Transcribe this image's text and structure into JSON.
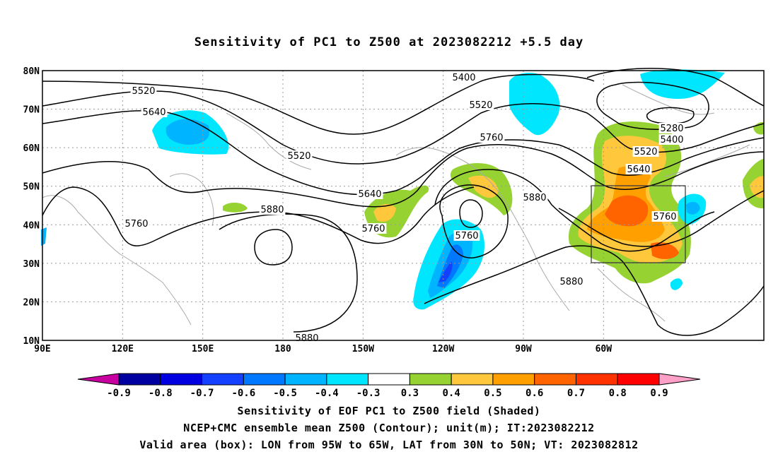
{
  "title": "Sensitivity of PC1 to Z500 at 2023082212 +5.5 day",
  "map": {
    "lon_ticks": [
      "90E",
      "120E",
      "150E",
      "180",
      "150W",
      "120W",
      "90W",
      "60W"
    ],
    "lat_ticks": [
      "80N",
      "70N",
      "60N",
      "50N",
      "40N",
      "30N",
      "20N",
      "10N"
    ]
  },
  "contour_labels": [
    "5400",
    "5520",
    "5640",
    "5520",
    "5520",
    "5760",
    "5880",
    "5640",
    "5760",
    "5760",
    "5880",
    "5760",
    "5880",
    "5880",
    "5280",
    "5400",
    "5520",
    "5640",
    "5760"
  ],
  "colorbar": {
    "labels": [
      "-0.9",
      "-0.8",
      "-0.7",
      "-0.6",
      "-0.5",
      "-0.4",
      "-0.3",
      "0.3",
      "0.4",
      "0.5",
      "0.6",
      "0.7",
      "0.8",
      "0.9"
    ],
    "colors": [
      "#0000a0",
      "#0000e0",
      "#1440ff",
      "#0078ff",
      "#00b4ff",
      "#00e6ff",
      "#ffffff",
      "#96d232",
      "#ffc83c",
      "#ffa000",
      "#ff6400",
      "#ff3200",
      "#ff0000"
    ],
    "low_end": "#c800a0",
    "high_end": "#ffa0c8"
  },
  "footer": {
    "line1": "Sensitivity of EOF PC1 to Z500 field (Shaded)",
    "line2": "NCEP+CMC ensemble mean Z500 (Contour); unit(m); IT:2023082212",
    "line3": "Valid area (box): LON from 95W to 65W, LAT from 30N to 50N; VT: 2023082812"
  }
}
